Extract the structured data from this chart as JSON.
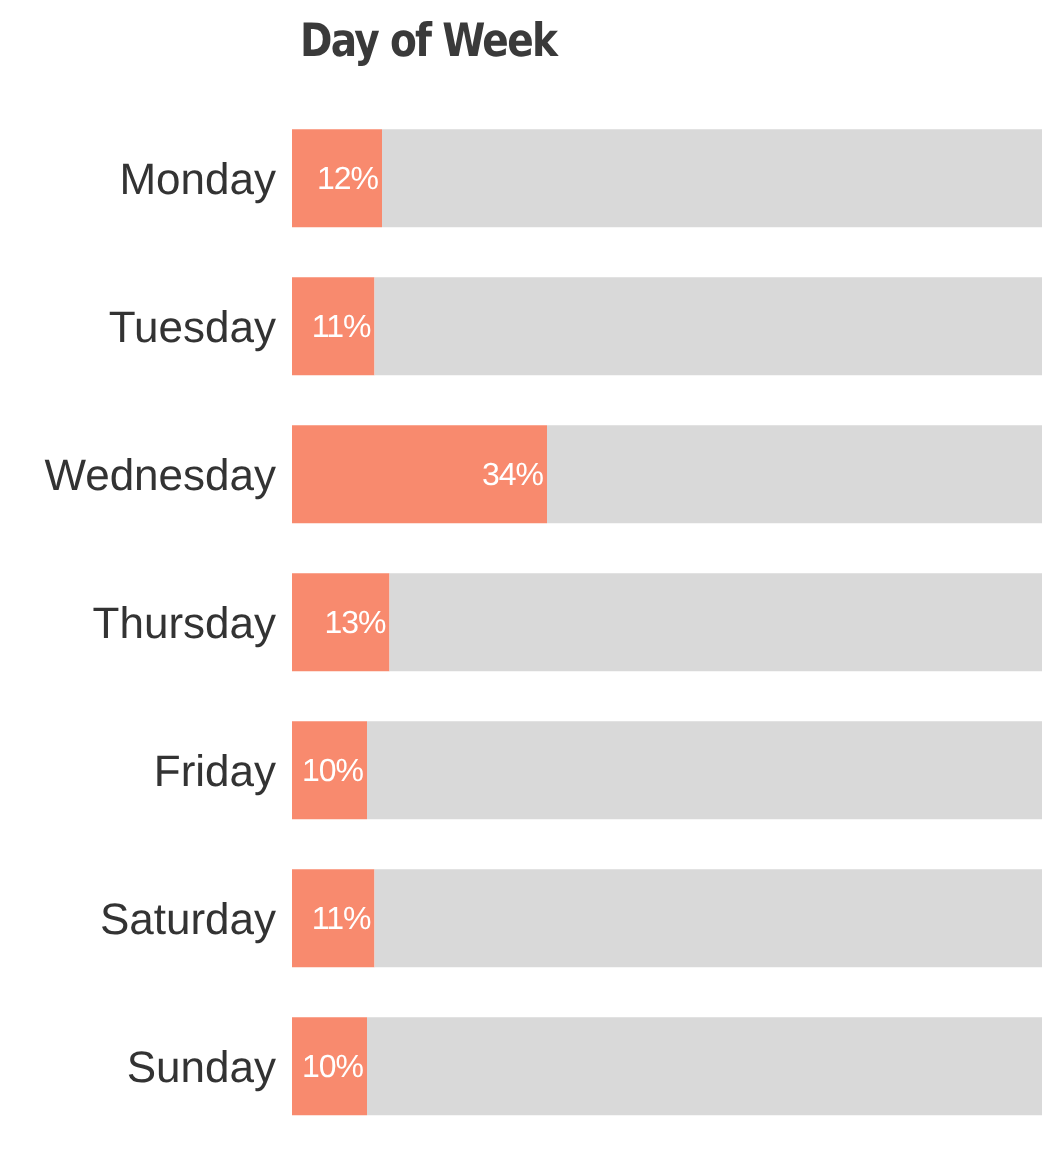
{
  "chart_data": {
    "type": "bar",
    "title": "Day of Week",
    "orientation": "horizontal",
    "stacked": true,
    "categories": [
      "Monday",
      "Tuesday",
      "Wednesday",
      "Thursday",
      "Friday",
      "Saturday",
      "Sunday"
    ],
    "series": [
      {
        "color": "#f88a6e",
        "values": [
          12,
          11,
          34,
          13,
          10,
          11,
          10
        ],
        "value_labels": [
          "12%",
          "11%",
          "34%",
          "13%",
          "10%",
          "11%",
          "10%"
        ]
      },
      {
        "color": "#d9d9d9",
        "values": [
          88,
          89,
          66,
          87,
          90,
          89,
          90
        ]
      }
    ],
    "xlim": [
      0,
      100
    ],
    "tick_labels": "y"
  }
}
